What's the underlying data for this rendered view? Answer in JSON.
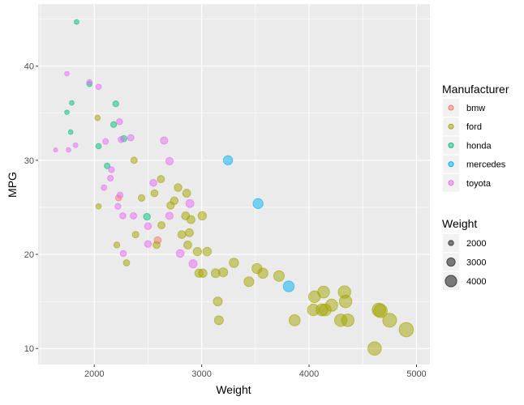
{
  "chart_data": {
    "type": "scatter",
    "xlabel": "Weight",
    "ylabel": "MPG",
    "xlim": [
      1477,
      5125
    ],
    "ylim": [
      8.3,
      46.6
    ],
    "x_ticks": [
      2000,
      3000,
      4000,
      5000
    ],
    "y_ticks": [
      10,
      20,
      30,
      40
    ],
    "grid": true,
    "legend_position": "right",
    "color_legend": {
      "title": "Manufacturer",
      "entries": [
        {
          "name": "bmw",
          "color": "#F8766D"
        },
        {
          "name": "ford",
          "color": "#A3A500"
        },
        {
          "name": "honda",
          "color": "#00BF7D"
        },
        {
          "name": "mercedes",
          "color": "#00B0F6"
        },
        {
          "name": "toyota",
          "color": "#E76BF3"
        }
      ]
    },
    "size_legend": {
      "title": "Weight",
      "entries": [
        2000,
        3000,
        4000
      ]
    },
    "series": [
      {
        "name": "bmw",
        "points": [
          [
            2226,
            26.0
          ],
          [
            2590,
            21.5
          ]
        ]
      },
      {
        "name": "ford",
        "points": [
          [
            2620,
            28.0
          ],
          [
            2780,
            27.1
          ],
          [
            2860,
            26.5
          ],
          [
            2560,
            26.5
          ],
          [
            2440,
            26.0
          ],
          [
            2040,
            25.1
          ],
          [
            2745,
            25.7
          ],
          [
            2710,
            25.2
          ],
          [
            2850,
            24.1
          ],
          [
            2900,
            23.7
          ],
          [
            3005,
            24.1
          ],
          [
            2625,
            23.1
          ],
          [
            2385,
            22.1
          ],
          [
            2815,
            22.1
          ],
          [
            2885,
            22.3
          ],
          [
            2210,
            21.0
          ],
          [
            2580,
            21.0
          ],
          [
            2870,
            21.0
          ],
          [
            2960,
            20.3
          ],
          [
            3050,
            20.3
          ],
          [
            2300,
            19.1
          ],
          [
            3300,
            19.1
          ],
          [
            2975,
            18.0
          ],
          [
            3010,
            18.0
          ],
          [
            3130,
            18.0
          ],
          [
            3200,
            18.1
          ],
          [
            3515,
            18.5
          ],
          [
            3570,
            18.0
          ],
          [
            3720,
            17.7
          ],
          [
            3440,
            17.1
          ],
          [
            3150,
            15.0
          ],
          [
            3160,
            13.0
          ],
          [
            2030,
            34.5
          ],
          [
            2370,
            30.0
          ],
          [
            4050,
            15.5
          ],
          [
            4135,
            16.0
          ],
          [
            4210,
            14.6
          ],
          [
            4040,
            14.1
          ],
          [
            4120,
            14.1
          ],
          [
            4150,
            14.1
          ],
          [
            4330,
            16.0
          ],
          [
            4340,
            15.0
          ],
          [
            4295,
            13.0
          ],
          [
            4360,
            13.0
          ],
          [
            3865,
            13.0
          ],
          [
            4650,
            14.1
          ],
          [
            4665,
            14.0
          ],
          [
            4750,
            13.0
          ],
          [
            4905,
            12.0
          ],
          [
            4610,
            10.0
          ]
        ]
      },
      {
        "name": "honda",
        "points": [
          [
            1835,
            44.7
          ],
          [
            1955,
            38.1
          ],
          [
            1790,
            36.1
          ],
          [
            2200,
            36.0
          ],
          [
            1745,
            35.1
          ],
          [
            1780,
            33.0
          ],
          [
            2180,
            33.8
          ],
          [
            2275,
            32.3
          ],
          [
            2040,
            31.5
          ],
          [
            2120,
            29.4
          ],
          [
            2490,
            24.0
          ]
        ]
      },
      {
        "name": "mercedes",
        "points": [
          [
            3245,
            30.0
          ],
          [
            3525,
            25.4
          ],
          [
            3810,
            16.6
          ]
        ]
      },
      {
        "name": "toyota",
        "points": [
          [
            1745,
            39.2
          ],
          [
            1955,
            38.3
          ],
          [
            2040,
            37.8
          ],
          [
            2235,
            34.1
          ],
          [
            2105,
            32.0
          ],
          [
            1825,
            31.6
          ],
          [
            1760,
            31.1
          ],
          [
            1640,
            31.1
          ],
          [
            2340,
            32.4
          ],
          [
            2250,
            32.2
          ],
          [
            2650,
            32.1
          ],
          [
            2700,
            29.9
          ],
          [
            2160,
            29.0
          ],
          [
            2150,
            28.1
          ],
          [
            2090,
            27.1
          ],
          [
            2550,
            27.6
          ],
          [
            2240,
            26.3
          ],
          [
            2220,
            25.1
          ],
          [
            2265,
            24.1
          ],
          [
            2365,
            24.1
          ],
          [
            2700,
            24.1
          ],
          [
            2890,
            25.4
          ],
          [
            2500,
            23.0
          ],
          [
            2500,
            21.1
          ],
          [
            2270,
            20.1
          ],
          [
            2800,
            20.1
          ],
          [
            2920,
            19.0
          ]
        ]
      }
    ]
  }
}
